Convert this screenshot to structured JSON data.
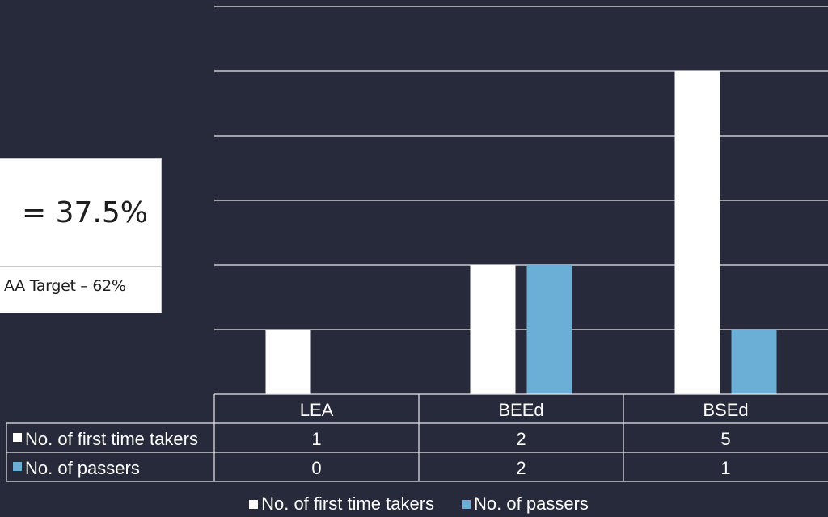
{
  "callout": {
    "value_text": "= 37.5%",
    "target_text": "AA Target – 62%"
  },
  "chart_data": {
    "type": "bar",
    "categories": [
      "LEA",
      "BEEd",
      "BSEd"
    ],
    "series": [
      {
        "name": "No. of first time takers",
        "values": [
          1,
          2,
          5
        ],
        "color": "#ffffff"
      },
      {
        "name": "No. of passers",
        "values": [
          0,
          2,
          1
        ],
        "color": "#6baed6"
      }
    ],
    "ylim": [
      0,
      6
    ],
    "grid": true,
    "data_table": true,
    "legend": "bottom"
  }
}
